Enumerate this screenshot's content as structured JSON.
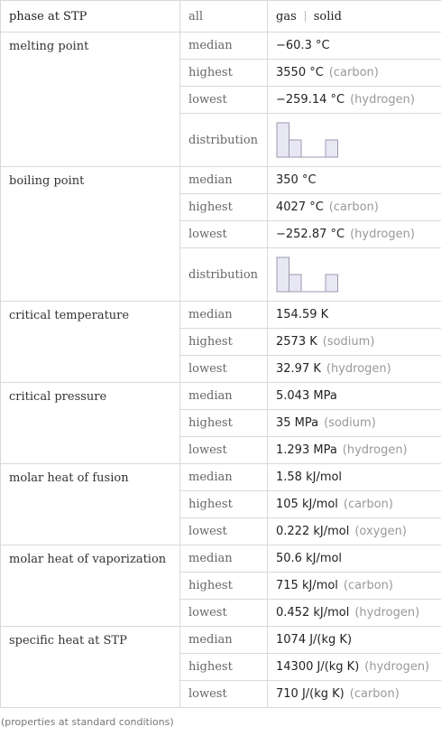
{
  "header": {
    "cells": [
      "phase at STP",
      "all"
    ],
    "phases": [
      "gas",
      "solid"
    ]
  },
  "properties": [
    {
      "name": "melting point",
      "rows": [
        {
          "stat": "median",
          "value": "−60.3 °C"
        },
        {
          "stat": "highest",
          "value": "3550 °C",
          "note": "(carbon)"
        },
        {
          "stat": "lowest",
          "value": "−259.14 °C",
          "note": "(hydrogen)"
        }
      ],
      "distribution": {
        "label": "distribution",
        "counts": [
          2,
          1,
          0,
          0,
          1
        ]
      }
    },
    {
      "name": "boiling point",
      "rows": [
        {
          "stat": "median",
          "value": "350 °C"
        },
        {
          "stat": "highest",
          "value": "4027 °C",
          "note": "(carbon)"
        },
        {
          "stat": "lowest",
          "value": "−252.87 °C",
          "note": "(hydrogen)"
        }
      ],
      "distribution": {
        "label": "distribution",
        "counts": [
          2,
          1,
          0,
          0,
          1
        ]
      }
    },
    {
      "name": "critical temperature",
      "rows": [
        {
          "stat": "median",
          "value": "154.59 K"
        },
        {
          "stat": "highest",
          "value": "2573 K",
          "note": "(sodium)"
        },
        {
          "stat": "lowest",
          "value": "32.97 K",
          "note": "(hydrogen)"
        }
      ]
    },
    {
      "name": "critical pressure",
      "rows": [
        {
          "stat": "median",
          "value": "5.043 MPa"
        },
        {
          "stat": "highest",
          "value": "35 MPa",
          "note": "(sodium)"
        },
        {
          "stat": "lowest",
          "value": "1.293 MPa",
          "note": "(hydrogen)"
        }
      ]
    },
    {
      "name": "molar heat of fusion",
      "rows": [
        {
          "stat": "median",
          "value": "1.58 kJ/mol"
        },
        {
          "stat": "highest",
          "value": "105 kJ/mol",
          "note": "(carbon)"
        },
        {
          "stat": "lowest",
          "value": "0.222 kJ/mol",
          "note": "(oxygen)"
        }
      ]
    },
    {
      "name": "molar heat of vaporization",
      "rows": [
        {
          "stat": "median",
          "value": "50.6 kJ/mol"
        },
        {
          "stat": "highest",
          "value": "715 kJ/mol",
          "note": "(carbon)"
        },
        {
          "stat": "lowest",
          "value": "0.452 kJ/mol",
          "note": "(hydrogen)"
        }
      ]
    },
    {
      "name": "specific heat at STP",
      "rows": [
        {
          "stat": "median",
          "value": "1074 J/(kg K)"
        },
        {
          "stat": "highest",
          "value": "14300 J/(kg K)",
          "note": "(hydrogen)"
        },
        {
          "stat": "lowest",
          "value": "710 J/(kg K)",
          "note": "(carbon)"
        }
      ]
    }
  ],
  "footnote": "(properties at standard conditions)"
}
